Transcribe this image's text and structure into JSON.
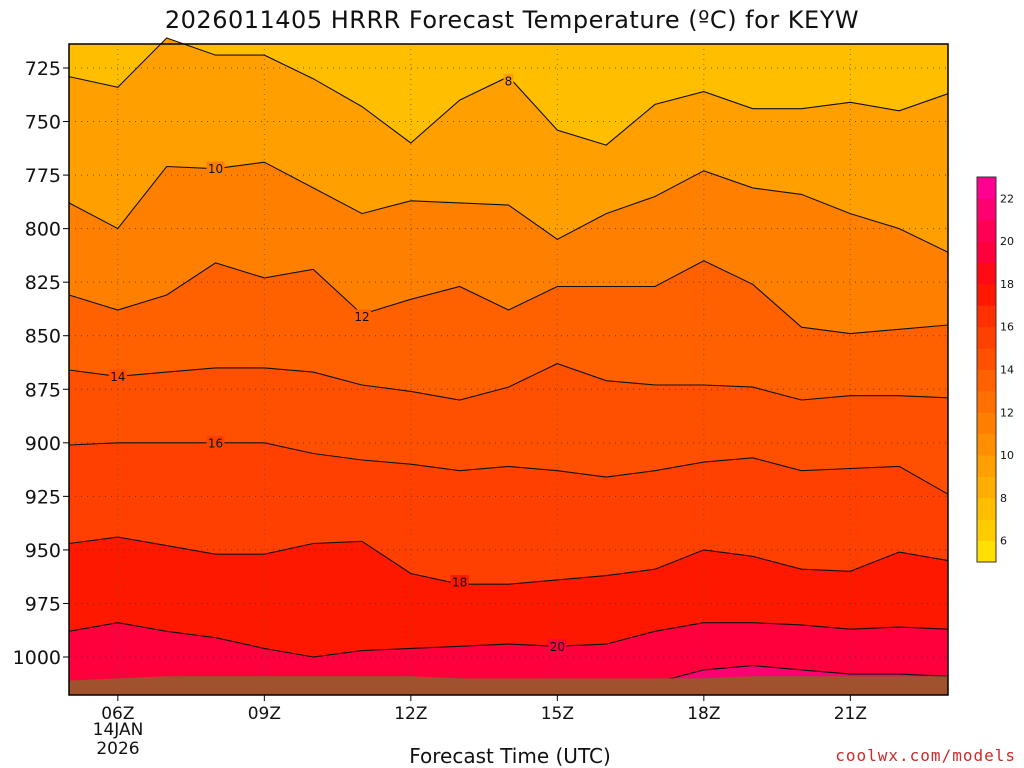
{
  "header": {
    "title": "2026011405 HRRR Forecast Temperature (ºC) for KEYW"
  },
  "footer": {
    "date_lines": [
      "14JAN",
      "2026"
    ],
    "credit": "coolwx.com/models"
  },
  "chart_data": {
    "type": "contour",
    "title": "2026011405 HRRR Forecast Temperature (ºC) for KEYW",
    "xlabel": "Forecast Time (UTC)",
    "ylabel": "",
    "x_unit": "hours (UTC, 14 Jan 2026)",
    "x_range": [
      5,
      23
    ],
    "x_ticks": [
      6,
      9,
      12,
      15,
      18,
      21
    ],
    "x_tick_labels": [
      "06Z",
      "09Z",
      "12Z",
      "15Z",
      "18Z",
      "21Z"
    ],
    "y_unit": "hPa",
    "y_range": [
      1015,
      710
    ],
    "y_ticks": [
      725,
      750,
      775,
      800,
      825,
      850,
      875,
      900,
      925,
      950,
      975,
      1000
    ],
    "y_tick_labels": [
      "725",
      "750",
      "775",
      "800",
      "825",
      "850",
      "875",
      "900",
      "925",
      "950",
      "975",
      "1000"
    ],
    "grid": "dotted",
    "colorbar": {
      "levels": [
        5,
        6,
        7,
        8,
        9,
        10,
        11,
        12,
        13,
        14,
        15,
        16,
        17,
        18,
        19,
        20,
        21,
        22,
        23
      ],
      "tick_labels": [
        "6",
        "8",
        "10",
        "12",
        "14",
        "16",
        "18",
        "20",
        "22"
      ],
      "colors": [
        "#ffe000",
        "#ffcc00",
        "#ffbf00",
        "#ffae00",
        "#ff9f00",
        "#ff8e00",
        "#ff8000",
        "#ff7000",
        "#ff6000",
        "#ff5000",
        "#ff4000",
        "#ff3000",
        "#ff1800",
        "#ff0a14",
        "#ff003c",
        "#ff0055",
        "#ff0070",
        "#ff0090"
      ]
    },
    "contours": [
      {
        "level": 8,
        "label_at": [
          14,
          731
        ],
        "x": [
          5,
          6,
          7,
          8,
          9,
          10,
          11,
          12,
          13,
          14,
          15,
          16,
          17,
          18,
          19,
          20,
          21,
          22,
          23
        ],
        "p": [
          729,
          734,
          711,
          719,
          719,
          730,
          743,
          760,
          740,
          729,
          754,
          761,
          742,
          736,
          744,
          744,
          741,
          745,
          737
        ]
      },
      {
        "level": 10,
        "label_at": [
          8,
          772
        ],
        "x": [
          5,
          6,
          7,
          8,
          9,
          10,
          11,
          12,
          13,
          14,
          15,
          16,
          17,
          18,
          19,
          20,
          21,
          22,
          23
        ],
        "p": [
          788,
          800,
          771,
          772,
          769,
          781,
          793,
          787,
          788,
          789,
          805,
          793,
          785,
          773,
          781,
          784,
          793,
          800,
          811
        ]
      },
      {
        "level": 12,
        "label_at": [
          11,
          841
        ],
        "x": [
          5,
          6,
          7,
          8,
          9,
          10,
          11,
          12,
          13,
          14,
          15,
          16,
          17,
          18,
          19,
          20,
          21,
          22,
          23
        ],
        "p": [
          831,
          838,
          831,
          816,
          823,
          819,
          840,
          833,
          827,
          838,
          827,
          827,
          827,
          815,
          826,
          846,
          849,
          847,
          845
        ]
      },
      {
        "level": 14,
        "label_at": [
          6,
          869
        ],
        "x": [
          5,
          6,
          7,
          8,
          9,
          10,
          11,
          12,
          13,
          14,
          15,
          16,
          17,
          18,
          19,
          20,
          21,
          22,
          23
        ],
        "p": [
          866,
          869,
          867,
          865,
          865,
          867,
          873,
          876,
          880,
          874,
          863,
          871,
          873,
          873,
          874,
          880,
          878,
          878,
          879
        ]
      },
      {
        "level": 16,
        "label_at": [
          8,
          900
        ],
        "x": [
          5,
          6,
          7,
          8,
          9,
          10,
          11,
          12,
          13,
          14,
          15,
          16,
          17,
          18,
          19,
          20,
          21,
          22,
          23
        ],
        "p": [
          901,
          900,
          900,
          900,
          900,
          905,
          908,
          910,
          913,
          911,
          913,
          916,
          913,
          909,
          907,
          913,
          912,
          911,
          924
        ]
      },
      {
        "level": 18,
        "label_at": [
          13,
          965
        ],
        "x": [
          5,
          6,
          7,
          8,
          9,
          10,
          11,
          12,
          13,
          14,
          15,
          16,
          17,
          18,
          19,
          20,
          21,
          22,
          23
        ],
        "p": [
          947,
          944,
          948,
          952,
          952,
          947,
          946,
          961,
          966,
          966,
          964,
          962,
          959,
          950,
          953,
          959,
          960,
          951,
          955
        ]
      },
      {
        "level": 20,
        "label_at": [
          15,
          995
        ],
        "x": [
          5,
          6,
          7,
          8,
          9,
          10,
          11,
          12,
          13,
          14,
          15,
          16,
          17,
          18,
          19,
          20,
          21,
          22,
          23
        ],
        "p": [
          988,
          984,
          988,
          991,
          996,
          1000,
          997,
          996,
          995,
          994,
          995,
          994,
          988,
          984,
          984,
          985,
          987,
          986,
          987
        ]
      },
      {
        "level": 22,
        "label_at": null,
        "x": [
          16.5,
          17,
          18,
          19,
          20,
          21,
          22,
          23
        ],
        "p": [
          1015,
          1012,
          1006,
          1004,
          1006,
          1008,
          1008,
          1009
        ]
      }
    ],
    "surface_pressure": {
      "x": [
        5,
        6,
        7,
        8,
        9,
        10,
        11,
        12,
        13,
        14,
        15,
        16,
        17,
        18,
        19,
        20,
        21,
        22,
        23
      ],
      "p": [
        1011,
        1010,
        1009,
        1009,
        1009,
        1009,
        1009,
        1009,
        1010,
        1010,
        1010,
        1010,
        1010,
        1010,
        1009,
        1009,
        1009,
        1009,
        1009
      ]
    }
  }
}
